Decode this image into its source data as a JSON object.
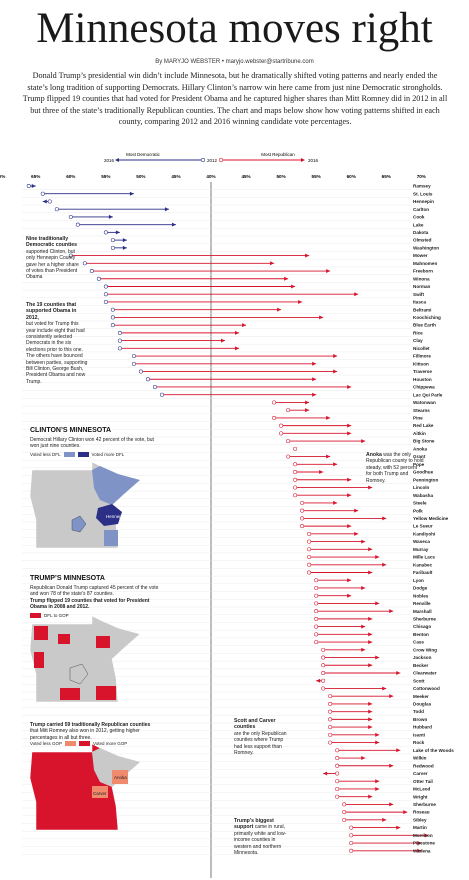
{
  "header": {
    "title": "Minnesota moves right",
    "byline": "By MARYJO WEBSTER • maryjo.webster@startribune.com",
    "intro": "Donald Trump’s presidential win didn’t include Minnesota, but he dramatically shifted voting patterns and nearly ended the state’s long tradition of supporting Democrats. Hillary Clinton’s narrow win here came from just nine Democratic strongholds. Trump flipped 19 counties that had voted for President Obama and he captured higher shares than Mitt Romney did in 2012 in all but three of the state’s traditionally Republican counties. The chart and maps below show how voting patterns shifted in each county, comparing 2012 and 2016 winning candidate vote percentages."
  },
  "legend": {
    "dem_label": "Most Democratic",
    "rep_label": "Most Republican",
    "y2016": "2016",
    "y2012": "2012",
    "colors": {
      "dem": "#2b2f86",
      "rep": "#d7142c",
      "grey": "#c8c8c8",
      "light_dem": "#7f93c6"
    }
  },
  "annotations": {
    "nine_head": "Nine traditionally Democratic counties",
    "nine_body": "supported Clinton, but only Hennepin County gave her a higher share of votes than President Obama",
    "flip_head": "The 19 counties that supported Obama in 2012,",
    "flip_body": "but voted for Trump this year include eight that had consistently selected Democrats in the six elections prior to this one. The others have bounced between parties, supporting Bill Clinton, George Bush, President Obama and now Trump.",
    "anoka_head": "Anoka",
    "anoka_body": "was the only Republican county to hold steady, with 52 percent for both Trump and Romney.",
    "scott_head": "Scott and Carver counties",
    "scott_body": "are the only Republican counties where Trump had less support than Romney.",
    "big_head": "Trump’s biggest support",
    "big_body": "came in rural, primarily white and low-income counties in western and northern Minnesota."
  },
  "maps": {
    "clinton_title": "CLINTON’S MINNESOTA",
    "clinton_desc": "Democrat Hillary Clinton won 42 percent of the vote, but won just nine counties.",
    "clinton_leg_less": "Voted less DFL",
    "clinton_leg_more": "Voted more DFL",
    "clinton_label": "Hennepin",
    "trump_title": "TRUMP’S MINNESOTA",
    "trump_desc": "Republican Donald Trump captured 45 percent of the vote and won 78 of the state’s 87 counties.",
    "trump_sub": "Trump flipped 19 counties that voted for President Obama in 2008 and 2012.",
    "trump_leg": "DFL to GOP",
    "gop_head": "Trump carried 59 traditionally Republican counties",
    "gop_desc": "that Mitt Romney also won in 2012, getting higher percentages in all but three.",
    "gop_leg_less": "Voted less GOP",
    "gop_leg_more": "Voted more GOP",
    "gop_label_anoka": "Anoka",
    "gop_label_carver": "Carver"
  },
  "chart_data": {
    "type": "dumbbell",
    "x_ticks": [
      "70%",
      "65%",
      "60%",
      "55%",
      "50%",
      "45%",
      "40%",
      "45%",
      "50%",
      "55%",
      "60%",
      "65%",
      "70%"
    ],
    "x_scale": "Democratic share rises to the left of the 40% center line, Republican share rises to the right",
    "grid": true,
    "series": [
      {
        "name": "2012",
        "marker": "open circle"
      },
      {
        "name": "2016",
        "marker": "arrowhead"
      }
    ],
    "counties": [
      {
        "name": "Ramsey",
        "party": "dem",
        "v2012": 66,
        "v2016": 65
      },
      {
        "name": "St. Louis",
        "party": "dem",
        "v2012": 64,
        "v2016": 51
      },
      {
        "name": "Hennepin",
        "party": "dem",
        "v2012": 63,
        "v2016": 64
      },
      {
        "name": "Carlton",
        "party": "dem",
        "v2012": 62,
        "v2016": 46
      },
      {
        "name": "Cook",
        "party": "dem",
        "v2012": 60,
        "v2016": 54
      },
      {
        "name": "Lake",
        "party": "dem",
        "v2012": 59,
        "v2016": 45
      },
      {
        "name": "Dakota",
        "party": "dem",
        "v2012": 55,
        "v2016": 53
      },
      {
        "name": "Olmsted",
        "party": "dem",
        "v2012": 54,
        "v2016": 52
      },
      {
        "name": "Washington",
        "party": "dem",
        "v2012": 54,
        "v2016": 52
      },
      {
        "name": "Mower",
        "party": "flip",
        "v2012": 60,
        "v2016": 54
      },
      {
        "name": "Mahnomen",
        "party": "flip",
        "v2012": 58,
        "v2016": 49
      },
      {
        "name": "Freeborn",
        "party": "flip",
        "v2012": 57,
        "v2016": 57
      },
      {
        "name": "Winona",
        "party": "flip",
        "v2012": 56,
        "v2016": 51
      },
      {
        "name": "Norman",
        "party": "flip",
        "v2012": 55,
        "v2016": 52
      },
      {
        "name": "Swift",
        "party": "flip",
        "v2012": 55,
        "v2016": 61
      },
      {
        "name": "Itasca",
        "party": "flip",
        "v2012": 55,
        "v2016": 53
      },
      {
        "name": "Beltrami",
        "party": "flip",
        "v2012": 54,
        "v2016": 50
      },
      {
        "name": "Koochiching",
        "party": "flip",
        "v2012": 54,
        "v2016": 56
      },
      {
        "name": "Blue Earth",
        "party": "flip",
        "v2012": 54,
        "v2016": 45
      },
      {
        "name": "Rice",
        "party": "flip",
        "v2012": 53,
        "v2016": 44
      },
      {
        "name": "Clay",
        "party": "flip",
        "v2012": 53,
        "v2016": 42
      },
      {
        "name": "Nicollet",
        "party": "flip",
        "v2012": 53,
        "v2016": 44
      },
      {
        "name": "Fillmore",
        "party": "flip",
        "v2012": 51,
        "v2016": 58
      },
      {
        "name": "Kittson",
        "party": "flip",
        "v2012": 51,
        "v2016": 55
      },
      {
        "name": "Traverse",
        "party": "flip",
        "v2012": 50,
        "v2016": 58
      },
      {
        "name": "Houston",
        "party": "flip",
        "v2012": 49,
        "v2016": 55
      },
      {
        "name": "Chippewa",
        "party": "flip",
        "v2012": 48,
        "v2016": 60
      },
      {
        "name": "Lac Qui Parle",
        "party": "flip",
        "v2012": 47,
        "v2016": 55
      },
      {
        "name": "Watonwan",
        "party": "rep",
        "v2012": 49,
        "v2016": 54
      },
      {
        "name": "Stearns",
        "party": "rep",
        "v2012": 51,
        "v2016": 54
      },
      {
        "name": "Pine",
        "party": "rep",
        "v2012": 49,
        "v2016": 57
      },
      {
        "name": "Red Lake",
        "party": "rep",
        "v2012": 50,
        "v2016": 60
      },
      {
        "name": "Aitkin",
        "party": "rep",
        "v2012": 50,
        "v2016": 60
      },
      {
        "name": "Big Stone",
        "party": "rep",
        "v2012": 51,
        "v2016": 62
      },
      {
        "name": "Anoka",
        "party": "rep",
        "v2012": 52,
        "v2016": 52
      },
      {
        "name": "Grant",
        "party": "rep",
        "v2012": 51,
        "v2016": 57
      },
      {
        "name": "Pope",
        "party": "rep",
        "v2012": 52,
        "v2016": 58
      },
      {
        "name": "Goodhue",
        "party": "rep",
        "v2012": 52,
        "v2016": 56
      },
      {
        "name": "Pennington",
        "party": "rep",
        "v2012": 52,
        "v2016": 60
      },
      {
        "name": "Lincoln",
        "party": "rep",
        "v2012": 52,
        "v2016": 63
      },
      {
        "name": "Wabasha",
        "party": "rep",
        "v2012": 52,
        "v2016": 60
      },
      {
        "name": "Steele",
        "party": "rep",
        "v2012": 53,
        "v2016": 58
      },
      {
        "name": "Polk",
        "party": "rep",
        "v2012": 53,
        "v2016": 61
      },
      {
        "name": "Yellow Medicine",
        "party": "rep",
        "v2012": 53,
        "v2016": 65
      },
      {
        "name": "Le Sueur",
        "party": "rep",
        "v2012": 53,
        "v2016": 60
      },
      {
        "name": "Kandiyohi",
        "party": "rep",
        "v2012": 54,
        "v2016": 61
      },
      {
        "name": "Waseca",
        "party": "rep",
        "v2012": 54,
        "v2016": 62
      },
      {
        "name": "Murray",
        "party": "rep",
        "v2012": 54,
        "v2016": 63
      },
      {
        "name": "Mille Lacs",
        "party": "rep",
        "v2012": 54,
        "v2016": 64
      },
      {
        "name": "Kanabec",
        "party": "rep",
        "v2012": 54,
        "v2016": 65
      },
      {
        "name": "Faribault",
        "party": "rep",
        "v2012": 54,
        "v2016": 63
      },
      {
        "name": "Lyon",
        "party": "rep",
        "v2012": 55,
        "v2016": 60
      },
      {
        "name": "Dodge",
        "party": "rep",
        "v2012": 55,
        "v2016": 62
      },
      {
        "name": "Nobles",
        "party": "rep",
        "v2012": 55,
        "v2016": 60
      },
      {
        "name": "Renville",
        "party": "rep",
        "v2012": 55,
        "v2016": 64
      },
      {
        "name": "Marshall",
        "party": "rep",
        "v2012": 55,
        "v2016": 66
      },
      {
        "name": "Sherburne",
        "party": "rep",
        "v2012": 55,
        "v2016": 63
      },
      {
        "name": "Chisago",
        "party": "rep",
        "v2012": 55,
        "v2016": 62
      },
      {
        "name": "Benton",
        "party": "rep",
        "v2012": 55,
        "v2016": 63
      },
      {
        "name": "Cass",
        "party": "rep",
        "v2012": 55,
        "v2016": 63
      },
      {
        "name": "Crow Wing",
        "party": "rep",
        "v2012": 56,
        "v2016": 62
      },
      {
        "name": "Jackson",
        "party": "rep",
        "v2012": 56,
        "v2016": 64
      },
      {
        "name": "Becker",
        "party": "rep",
        "v2012": 56,
        "v2016": 63
      },
      {
        "name": "Clearwater",
        "party": "rep",
        "v2012": 56,
        "v2016": 67
      },
      {
        "name": "Scott",
        "party": "rep",
        "v2012": 56,
        "v2016": 55
      },
      {
        "name": "Cottonwood",
        "party": "rep",
        "v2012": 56,
        "v2016": 65
      },
      {
        "name": "Meeker",
        "party": "rep",
        "v2012": 57,
        "v2016": 66
      },
      {
        "name": "Douglas",
        "party": "rep",
        "v2012": 57,
        "v2016": 63
      },
      {
        "name": "Todd",
        "party": "rep",
        "v2012": 57,
        "v2016": 63
      },
      {
        "name": "Brown",
        "party": "rep",
        "v2012": 57,
        "v2016": 63
      },
      {
        "name": "Hubbard",
        "party": "rep",
        "v2012": 57,
        "v2016": 63
      },
      {
        "name": "Isanti",
        "party": "rep",
        "v2012": 57,
        "v2016": 64
      },
      {
        "name": "Rock",
        "party": "rep",
        "v2012": 57,
        "v2016": 64
      },
      {
        "name": "Lake of the Woods",
        "party": "rep",
        "v2012": 58,
        "v2016": 67
      },
      {
        "name": "Wilkin",
        "party": "rep",
        "v2012": 58,
        "v2016": 62
      },
      {
        "name": "Redwood",
        "party": "rep",
        "v2012": 58,
        "v2016": 66
      },
      {
        "name": "Carver",
        "party": "rep",
        "v2012": 58,
        "v2016": 56
      },
      {
        "name": "Otter Tail",
        "party": "rep",
        "v2012": 58,
        "v2016": 64
      },
      {
        "name": "McLeod",
        "party": "rep",
        "v2012": 58,
        "v2016": 64
      },
      {
        "name": "Wright",
        "party": "rep",
        "v2012": 58,
        "v2016": 63
      },
      {
        "name": "Sherburne ",
        "party": "rep",
        "v2012": 59,
        "v2016": 66
      },
      {
        "name": "Roseau",
        "party": "rep",
        "v2012": 59,
        "v2016": 68
      },
      {
        "name": "Sibley",
        "party": "rep",
        "v2012": 59,
        "v2016": 65
      },
      {
        "name": "Martin",
        "party": "rep",
        "v2012": 60,
        "v2016": 67
      },
      {
        "name": "Morrison",
        "party": "rep",
        "v2012": 60,
        "v2016": 71
      },
      {
        "name": "Pipestone",
        "party": "rep",
        "v2012": 60,
        "v2016": 70
      },
      {
        "name": "Wadena",
        "party": "rep",
        "v2012": 60,
        "v2016": 70
      }
    ]
  }
}
